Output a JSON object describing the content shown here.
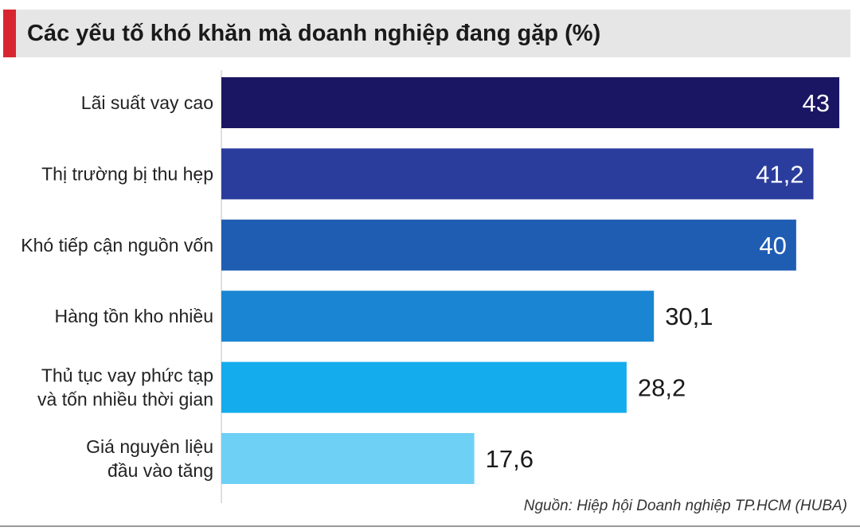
{
  "title": "Các yếu tố khó khăn mà doanh nghiệp đang gặp (%)",
  "source": "Nguồn: Hiệp hội Doanh nghiệp TP.HCM (HUBA)",
  "colors": {
    "accent": "#d7262f",
    "title_bg": "#e6e6e6",
    "bars": [
      "#1b1663",
      "#2b3d9c",
      "#1f5db3",
      "#1a86d3",
      "#14acec",
      "#6fd0f6"
    ]
  },
  "chart_data": {
    "type": "bar",
    "orientation": "horizontal",
    "title": "Các yếu tố khó khăn mà doanh nghiệp đang gặp (%)",
    "categories": [
      [
        "Lãi suất vay cao"
      ],
      [
        "Thị trường bị thu hẹp"
      ],
      [
        "Khó tiếp cận nguồn vốn"
      ],
      [
        "Hàng tồn kho nhiều"
      ],
      [
        "Thủ tục vay phức tạp",
        "và tốn nhiều thời gian"
      ],
      [
        "Giá nguyên liệu",
        "đầu vào tăng"
      ]
    ],
    "values": [
      43,
      41.2,
      40,
      30.1,
      28.2,
      17.6
    ],
    "data_labels": [
      "43",
      "41,2",
      "40",
      "30,1",
      "28,2",
      "17,6"
    ],
    "xlim": [
      0,
      43
    ],
    "grid": false,
    "legend": "none"
  }
}
